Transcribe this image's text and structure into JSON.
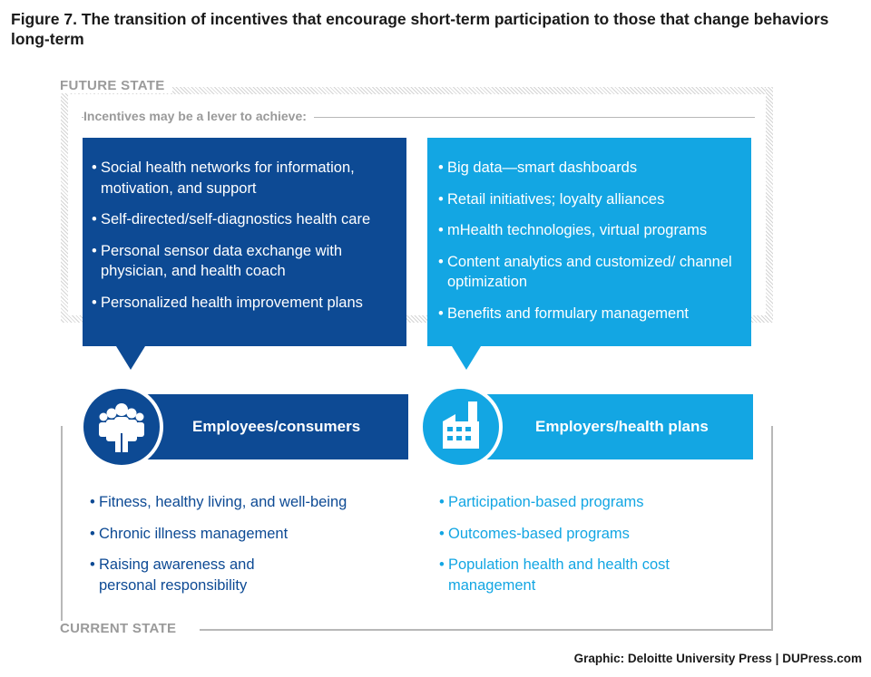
{
  "title": "Figure 7. The transition of incentives that encourage short-term participation to those that change behaviors long-term",
  "future": {
    "label": "FUTURE STATE",
    "sublabel": "Incentives may be a lever to achieve:",
    "left_items": [
      "Social health networks for information, motivation, and support",
      "Self-directed/self-diagnostics health care",
      "Personal sensor data exchange with physician, and health coach",
      "Personalized health improvement plans"
    ],
    "right_items": [
      "Big data—smart dashboards",
      "Retail initiatives; loyalty alliances",
      "mHealth technologies, virtual programs",
      "Content analytics and customized/ channel optimization",
      "Benefits and formulary management"
    ]
  },
  "actors": {
    "left": {
      "label": "Employees/consumers",
      "icon": "people-group-icon"
    },
    "right": {
      "label": "Employers/health plans",
      "icon": "factory-icon"
    }
  },
  "current": {
    "label": "CURRENT STATE",
    "left_items": [
      "Fitness, healthy living, and well-being",
      "Chronic illness management",
      "Raising awareness and personal responsibility"
    ],
    "right_items": [
      "Participation-based programs",
      "Outcomes-based programs",
      "Population health and health cost management"
    ]
  },
  "credit": "Graphic: Deloitte University Press | DUPress.com",
  "colors": {
    "dark_blue": "#0d4a94",
    "light_blue": "#13a6e3",
    "gray": "#9a9a9a"
  }
}
